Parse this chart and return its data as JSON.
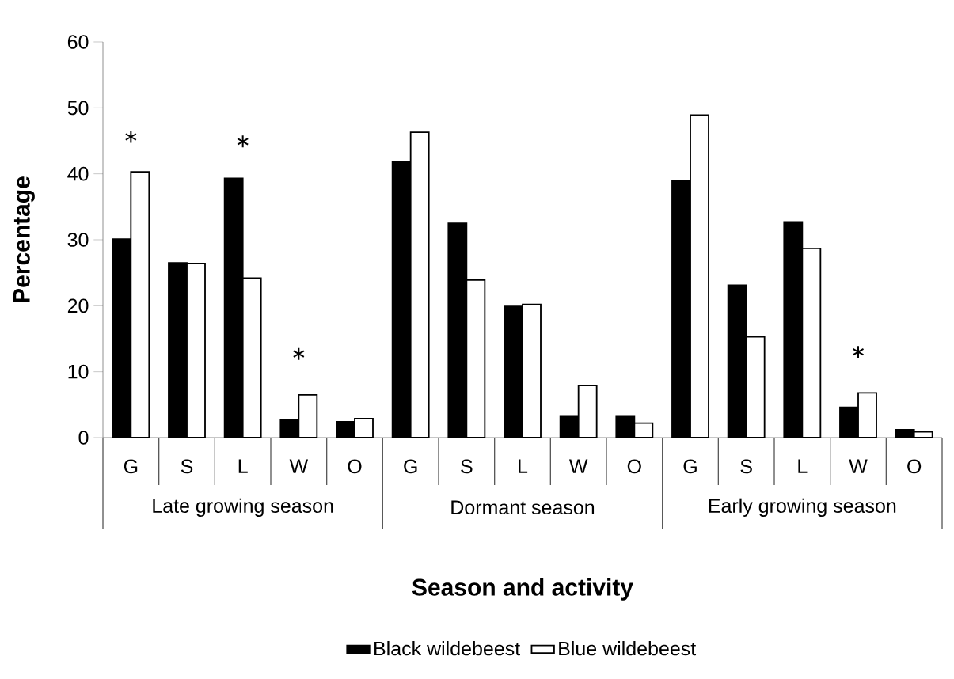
{
  "chart_data": {
    "type": "bar",
    "xlabel": "Season and activity",
    "ylabel": "Percentage",
    "categories": [
      "G",
      "S",
      "L",
      "W",
      "O",
      "G",
      "S",
      "L",
      "W",
      "O",
      "G",
      "S",
      "L",
      "W",
      "O"
    ],
    "series": [
      {
        "name": "Black wildebeest",
        "color": "#000000",
        "values": [
          30.1,
          26.5,
          39.3,
          2.7,
          2.4,
          41.8,
          32.5,
          19.9,
          3.2,
          3.2,
          39.0,
          23.1,
          32.7,
          4.6,
          1.2
        ]
      },
      {
        "name": "Blue wildebeest",
        "color": "#ffffff",
        "values": [
          40.3,
          26.4,
          24.2,
          6.5,
          2.9,
          46.3,
          23.9,
          20.2,
          7.9,
          2.2,
          48.9,
          15.3,
          28.7,
          6.8,
          0.9
        ]
      },
      {
        "type": "scatter",
        "marker": "cross",
        "color": "#000000",
        "values": [
          45.6,
          null,
          44.9,
          12.7,
          null,
          null,
          null,
          null,
          null,
          null,
          null,
          null,
          null,
          13.0,
          null
        ]
      }
    ],
    "annotations": [
      "Late growing season",
      "Dormant season",
      "Early growing season"
    ],
    "ylim": [
      0,
      60
    ],
    "yticks": [
      0,
      10,
      20,
      30,
      40,
      50,
      60
    ],
    "grid": false,
    "legend": "bottom"
  }
}
